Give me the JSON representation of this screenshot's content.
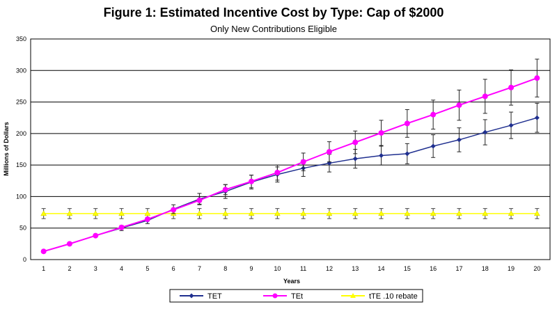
{
  "chart_data": {
    "type": "line",
    "title": "Figure 1: Estimated Incentive Cost by Type: Cap of $2000",
    "subtitle": "Only New Contributions Eligible",
    "xlabel": "Years",
    "ylabel": "Millions of Dollars",
    "ylim": [
      0,
      350
    ],
    "yticks": [
      0,
      50,
      100,
      150,
      200,
      250,
      300,
      350
    ],
    "grid": "horizontal",
    "legend_position": "bottom",
    "x": [
      1,
      2,
      3,
      4,
      5,
      6,
      7,
      8,
      9,
      10,
      11,
      12,
      13,
      14,
      15,
      16,
      17,
      18,
      19,
      20
    ],
    "series": [
      {
        "name": "TET",
        "color": "#1f2f8f",
        "marker": "diamond",
        "values": [
          13,
          25,
          38,
          50,
          62,
          80,
          96,
          108,
          123,
          135,
          145,
          153,
          160,
          165,
          168,
          180,
          190,
          202,
          213,
          225
        ],
        "errors": [
          0,
          0,
          0,
          4,
          5,
          7,
          9,
          11,
          11,
          12,
          13,
          14,
          15,
          15,
          16,
          18,
          19,
          20,
          21,
          23
        ]
      },
      {
        "name": "TEt",
        "color": "#ff00ff",
        "marker": "circle",
        "values": [
          13,
          25,
          38,
          51,
          64,
          79,
          94,
          111,
          124,
          138,
          155,
          171,
          186,
          201,
          216,
          230,
          245,
          259,
          273,
          288
        ],
        "errors": [
          0,
          0,
          0,
          0,
          0,
          0,
          6,
          8,
          10,
          12,
          14,
          16,
          18,
          20,
          22,
          23,
          24,
          27,
          28,
          30
        ]
      },
      {
        "name": "tTE .10 rebate",
        "color": "#ffff00",
        "marker": "triangle",
        "values": [
          73,
          73,
          73,
          73,
          73,
          73,
          73,
          73,
          73,
          73,
          73,
          73,
          73,
          73,
          73,
          73,
          73,
          73,
          73,
          73
        ],
        "errors": [
          8,
          8,
          8,
          8,
          8,
          8,
          8,
          8,
          8,
          8,
          8,
          8,
          8,
          8,
          8,
          8,
          8,
          8,
          8,
          8
        ]
      }
    ]
  }
}
